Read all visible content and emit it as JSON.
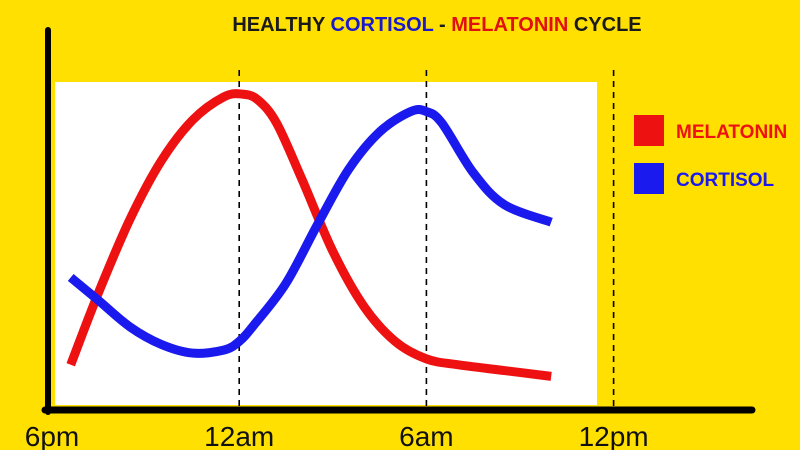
{
  "chart_data": {
    "type": "line",
    "title_parts": [
      {
        "text": "HEALTHY ",
        "color": "#1a1a1a"
      },
      {
        "text": "CORTISOL",
        "color": "#1a1acc"
      },
      {
        "text": " - ",
        "color": "#1a1a1a"
      },
      {
        "text": "MELATONIN",
        "color": "#e01010"
      },
      {
        "text": " CYCLE",
        "color": "#1a1a1a"
      }
    ],
    "x_ticks": [
      {
        "label": "6pm",
        "x": 0
      },
      {
        "label": "12am",
        "x": 6
      },
      {
        "label": "6am",
        "x": 12
      },
      {
        "label": "12pm",
        "x": 18
      }
    ],
    "x_unit": "hours after 6pm",
    "xlim": [
      0,
      21
    ],
    "ylim": [
      0,
      100
    ],
    "reference_lines_x": [
      6,
      12,
      18
    ],
    "grid": false,
    "legend_position": "right",
    "series": [
      {
        "name": "MELATONIN",
        "color": "#ee1111",
        "x": [
          0.6,
          1.5,
          2.5,
          3.5,
          4.5,
          5.5,
          6.1,
          6.6,
          7.2,
          8.0,
          9.0,
          10.0,
          11.0,
          12.0,
          13.0,
          14.5,
          16.0
        ],
        "y": [
          8,
          33,
          58,
          78,
          92,
          100,
          101,
          99,
          91,
          72,
          47,
          28,
          16,
          10,
          8,
          6,
          4
        ]
      },
      {
        "name": "CORTISOL",
        "color": "#1a1aee",
        "x": [
          0.6,
          1.5,
          2.5,
          3.5,
          4.5,
          5.5,
          6.0,
          6.5,
          7.5,
          8.5,
          9.5,
          10.5,
          11.5,
          12.0,
          12.5,
          13.5,
          14.5,
          16.0
        ],
        "y": [
          38,
          30,
          21,
          15,
          12,
          13,
          16,
          22,
          36,
          56,
          75,
          88,
          95,
          95,
          91,
          74,
          63,
          57
        ]
      }
    ]
  },
  "legend": [
    {
      "label": "MELATONIN",
      "color": "#ee1111"
    },
    {
      "label": "CORTISOL",
      "color": "#1a1aee"
    }
  ]
}
